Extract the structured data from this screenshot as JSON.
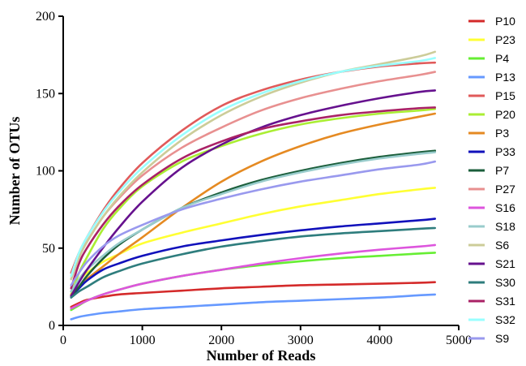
{
  "chart_data": {
    "type": "line",
    "title": "",
    "xlabel": "Number of Reads",
    "ylabel": "Number of OTUs",
    "xlim": [
      0,
      5000
    ],
    "ylim": [
      0,
      200
    ],
    "xticks": [
      "0",
      "1000",
      "2000",
      "3000",
      "4000",
      "5000"
    ],
    "yticks": [
      "0",
      "50",
      "100",
      "150",
      "200"
    ],
    "grid": false,
    "legend_position": "right",
    "x": [
      100,
      200,
      300,
      500,
      700,
      1000,
      1500,
      2000,
      2500,
      3000,
      3500,
      4000,
      4500,
      4700
    ],
    "series": [
      {
        "name": "P10",
        "color": "#d42a2a",
        "values": [
          12,
          14.5,
          16.5,
          18.5,
          20,
          21,
          22.5,
          24,
          25,
          26,
          26.5,
          27,
          27.6,
          28
        ]
      },
      {
        "name": "P23",
        "color": "#ffff33",
        "values": [
          22,
          29,
          34,
          41,
          46,
          53,
          60,
          66,
          72,
          77,
          81,
          85,
          88,
          89
        ]
      },
      {
        "name": "P4",
        "color": "#66ee33",
        "values": [
          10,
          13,
          16,
          20,
          23,
          27,
          32,
          36,
          39,
          41.5,
          43.5,
          45,
          46.5,
          47
        ]
      },
      {
        "name": "P13",
        "color": "#6699ff",
        "values": [
          4,
          5.5,
          6.5,
          8,
          9,
          10.5,
          12,
          13.5,
          15,
          16,
          17,
          18,
          19.5,
          20
        ]
      },
      {
        "name": "P15",
        "color": "#e05a5a",
        "values": [
          34,
          47,
          57,
          74,
          88,
          105,
          126,
          142,
          152,
          159,
          164,
          167.5,
          169.5,
          170
        ]
      },
      {
        "name": "P20",
        "color": "#aaee33",
        "values": [
          20,
          34,
          44,
          62,
          75,
          90,
          106,
          116,
          124,
          130,
          134,
          137,
          139,
          140
        ]
      },
      {
        "name": "P3",
        "color": "#e58a22",
        "values": [
          20,
          25,
          30,
          38,
          46,
          57,
          76,
          93,
          106,
          116,
          124,
          130,
          135,
          137
        ]
      },
      {
        "name": "P33",
        "color": "#1111bb",
        "values": [
          19,
          24,
          29,
          36,
          40,
          45,
          51,
          55,
          58.5,
          61.5,
          64,
          66,
          68,
          69
        ]
      },
      {
        "name": "P7",
        "color": "#1b5e3b",
        "values": [
          19,
          25,
          32,
          43,
          52,
          62,
          76,
          86,
          94,
          100,
          105,
          109,
          112,
          113
        ]
      },
      {
        "name": "P27",
        "color": "#e89090",
        "values": [
          30,
          44,
          54,
          70,
          82,
          97,
          115,
          128,
          139,
          147,
          153,
          158,
          162,
          164
        ]
      },
      {
        "name": "S16",
        "color": "#dd55dd",
        "values": [
          11,
          13.5,
          16,
          20,
          23,
          27,
          32,
          36,
          40,
          43.5,
          46.5,
          49,
          51,
          52
        ]
      },
      {
        "name": "S18",
        "color": "#99cccc",
        "values": [
          22,
          30,
          36,
          45,
          53,
          62,
          76,
          85,
          93,
          99,
          104,
          108,
          111,
          112
        ]
      },
      {
        "name": "S6",
        "color": "#cccc99",
        "values": [
          30,
          44,
          54,
          70,
          83,
          99,
          120,
          136,
          148,
          157,
          164,
          169,
          174,
          177
        ]
      },
      {
        "name": "S21",
        "color": "#66118e",
        "values": [
          19,
          28,
          36,
          50,
          63,
          80,
          102,
          117,
          128,
          136,
          142,
          147,
          151,
          152
        ]
      },
      {
        "name": "S30",
        "color": "#2e7d7d",
        "values": [
          18,
          22,
          25,
          31,
          35,
          40,
          46,
          51,
          54.5,
          57.5,
          59.5,
          61,
          62.5,
          63
        ]
      },
      {
        "name": "S31",
        "color": "#aa2266",
        "values": [
          24,
          40,
          50,
          65,
          77,
          91,
          108,
          119,
          127,
          132,
          136,
          138.5,
          140.5,
          141
        ]
      },
      {
        "name": "S32",
        "color": "#99ffff",
        "values": [
          32,
          47,
          57,
          73,
          86,
          102,
          123,
          139,
          150,
          158,
          164,
          168,
          171,
          173
        ]
      },
      {
        "name": "S9",
        "color": "#9999ee",
        "values": [
          26,
          34,
          41,
          51,
          58,
          65,
          75,
          82,
          88,
          93,
          97,
          101,
          104,
          106
        ]
      }
    ]
  }
}
